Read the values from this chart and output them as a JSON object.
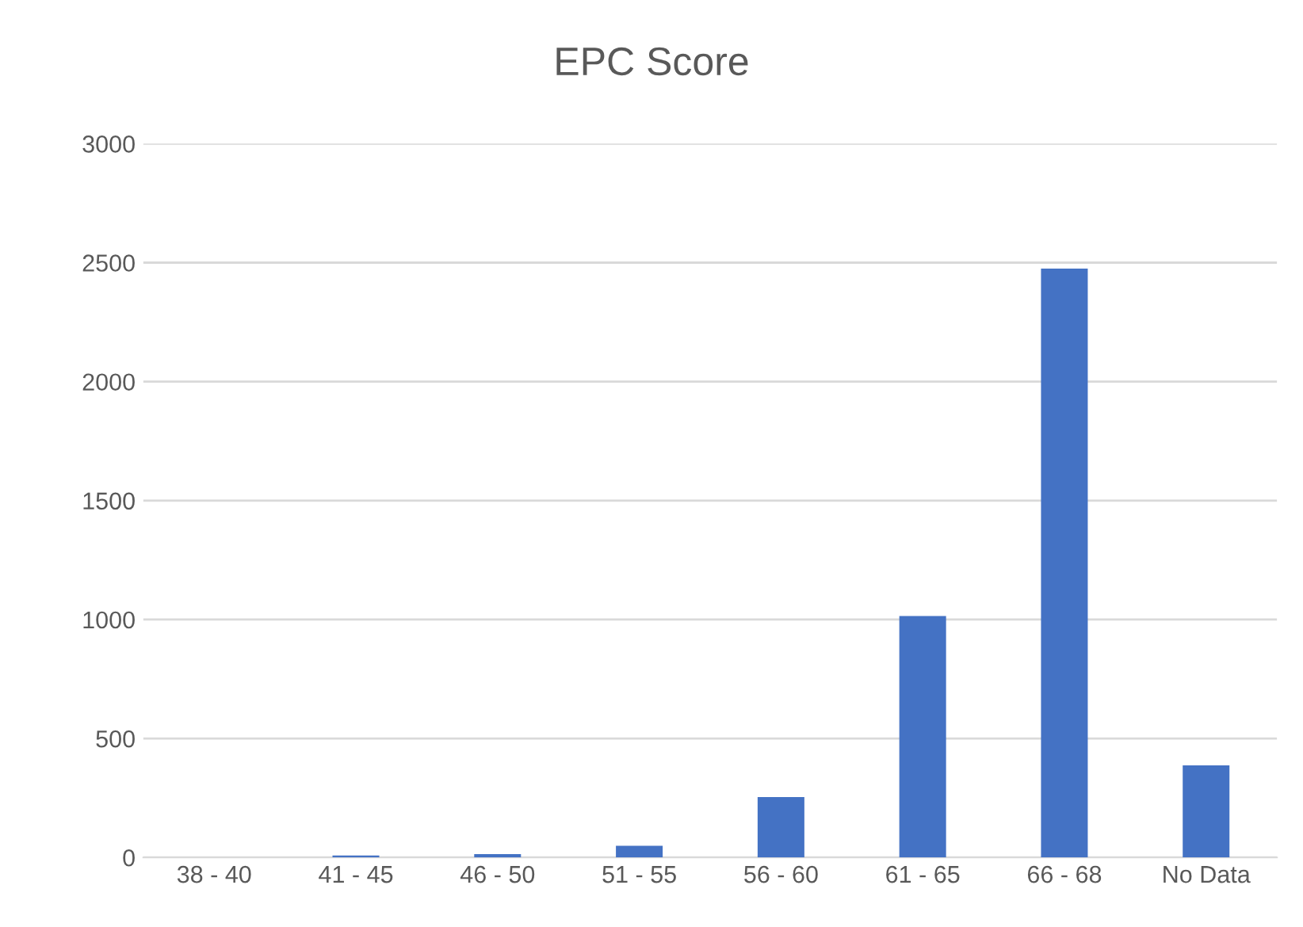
{
  "chart_data": {
    "type": "bar",
    "title": "EPC Score",
    "categories": [
      "38 - 40",
      "41 - 45",
      "46 - 50",
      "51 - 55",
      "56 - 60",
      "61 - 65",
      "66 - 68",
      "No Data"
    ],
    "values": [
      0,
      8,
      14,
      49,
      254,
      1015,
      2475,
      387
    ],
    "color": "#4472c4",
    "ylim": [
      0,
      3000
    ],
    "yticks": [
      0,
      500,
      1000,
      1500,
      2000,
      2500,
      3000
    ],
    "grid": "y",
    "legend": false
  }
}
